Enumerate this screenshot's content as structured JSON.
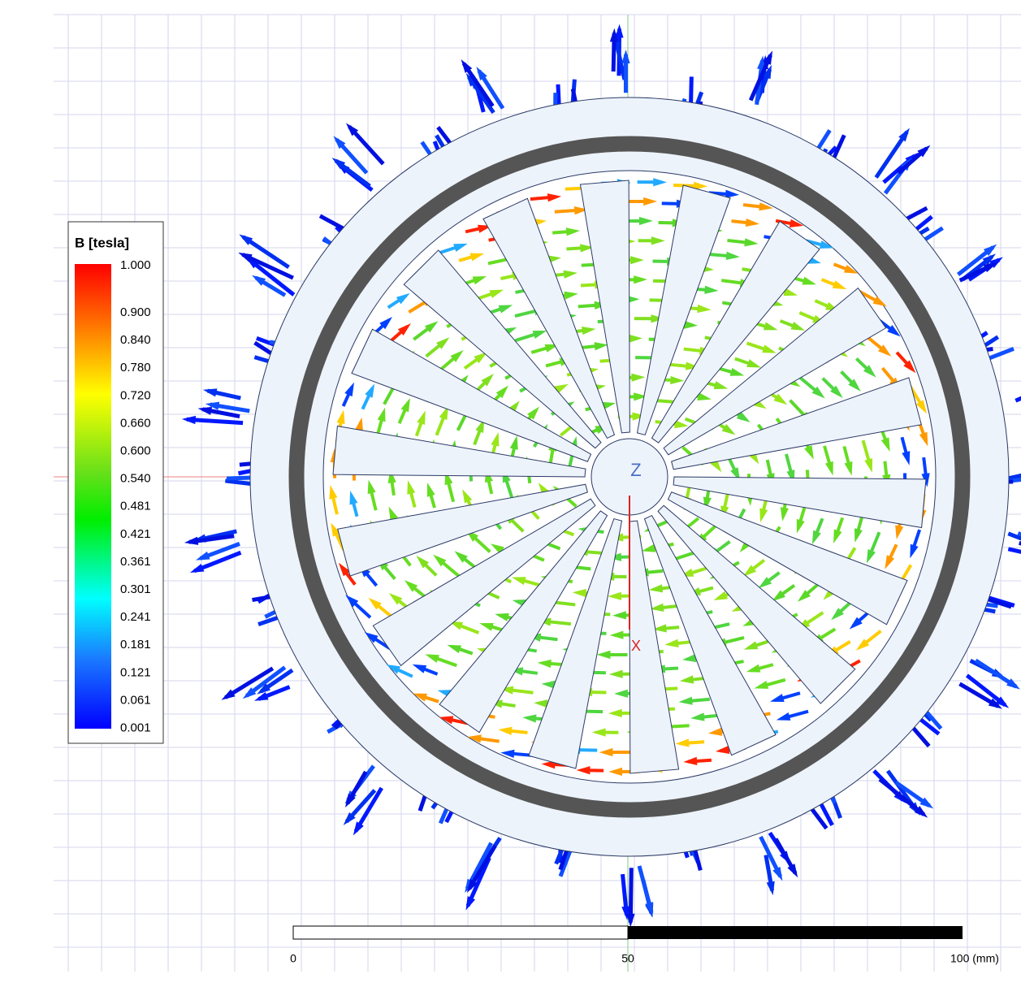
{
  "legend": {
    "title": "B [tesla]",
    "labels": [
      "1.000",
      "0.900",
      "0.840",
      "0.780",
      "0.720",
      "0.660",
      "0.600",
      "0.540",
      "0.481",
      "0.421",
      "0.361",
      "0.301",
      "0.241",
      "0.181",
      "0.121",
      "0.061",
      "0.001"
    ]
  },
  "axes": {
    "z": "Z",
    "x": "X"
  },
  "scale_bar": {
    "labels": [
      "0",
      "50",
      "100 (mm)"
    ]
  }
}
